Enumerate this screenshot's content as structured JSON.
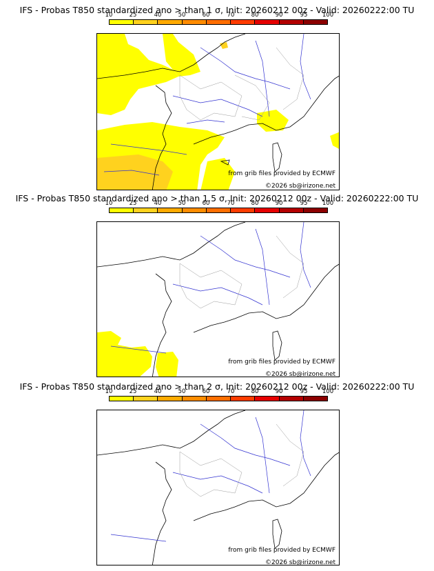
{
  "colors": {
    "c10": "#ffff00",
    "c25": "#ffd21e",
    "c40": "#ffaa00",
    "c50": "#ff8c00",
    "c60": "#ff6e00",
    "c70": "#ff3c00",
    "c80": "#e60000",
    "c90": "#b40000",
    "c95": "#8c0000",
    "c100": "#640000"
  },
  "colorbar_ticks": [
    "10",
    "25",
    "40",
    "50",
    "60",
    "70",
    "80",
    "90",
    "95",
    "100"
  ],
  "panels": [
    {
      "title": "IFS - Probas T850  standardized ano > than 1 σ, Init: 20260212 00z - Valid: 20260222:00 TU",
      "credit": "from grib files provided by ECMWF",
      "copyright": "©2026 sb@irizone.net"
    },
    {
      "title": "IFS - Probas T850  standardized ano > than 1.5 σ, Init: 20260212 00z - Valid: 20260222:00 TU",
      "credit": "from grib files provided by ECMWF",
      "copyright": "©2026 sb@irizone.net"
    },
    {
      "title": "IFS - Probas T850  standardized ano > than 2 σ, Init: 20260212 00z - Valid: 20260222:00 TU",
      "credit": "from grib files provided by ECMWF",
      "copyright": "©2026 sb@irizone.net"
    }
  ]
}
